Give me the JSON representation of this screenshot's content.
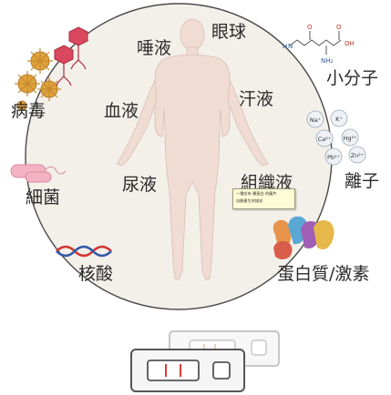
{
  "labels": {
    "saliva": "唾液",
    "eyeball": "眼球",
    "virus": "病毒",
    "blood": "血液",
    "sweat": "汗液",
    "small_molecule": "小分子",
    "bacteria": "細菌",
    "urine": "尿液",
    "tissue_fluid": "組織液",
    "ion": "離子",
    "nucleic_acid": "核酸",
    "protein_hormone": "蛋白質/激素"
  },
  "molecule": {
    "atoms": [
      "O",
      "O",
      "H",
      "N",
      "OH",
      "NH₂"
    ]
  },
  "ions": [
    "Na⁺",
    "K⁺",
    "Ca²⁺",
    "Hg²⁺",
    "Pb²⁺",
    "Zn²⁺"
  ],
  "tooltip": {
    "line1": "一種含有 擾蛋白 的圖片",
    "line2": "自動產生的描述"
  },
  "colors": {
    "circle_fill": "#f3efe9",
    "circle_stroke": "#4a4a4a",
    "body_fill": "#f2ddd4",
    "virus_pink": "#e0617a",
    "virus_gold": "#e0a23c",
    "bacteria_pink": "#f0a8bd",
    "dna_red": "#d2342f",
    "dna_blue": "#2f5aa8",
    "strip_line": "#e53935"
  }
}
